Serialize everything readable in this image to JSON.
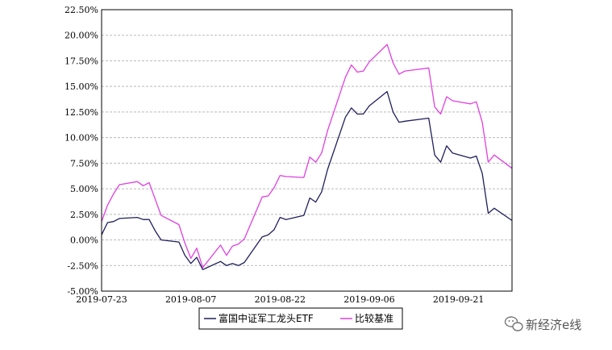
{
  "chart_data": {
    "type": "line",
    "title": "",
    "xlabel": "",
    "ylabel": "",
    "ylim": [
      -5,
      22.5
    ],
    "yticks": [
      "22.50%",
      "20.00%",
      "17.50%",
      "15.00%",
      "12.50%",
      "10.00%",
      "7.50%",
      "5.00%",
      "2.50%",
      "0.00%",
      "-2.50%",
      "-5.00%"
    ],
    "xlim": [
      "2019-07-23",
      "2019-09-30"
    ],
    "xticks": [
      "2019-07-23",
      "2019-08-07",
      "2019-08-22",
      "2019-09-06",
      "2019-09-21"
    ],
    "grid": true,
    "legend_position": "bottom-center",
    "series": [
      {
        "name": "富国中证军工龙头ETF",
        "color": "#1f1f5c",
        "points": [
          [
            "2019-07-23",
            0.5
          ],
          [
            "2019-07-24",
            1.7
          ],
          [
            "2019-07-25",
            1.8
          ],
          [
            "2019-07-26",
            2.1
          ],
          [
            "2019-07-29",
            2.2
          ],
          [
            "2019-07-30",
            2.0
          ],
          [
            "2019-07-31",
            2.0
          ],
          [
            "2019-08-01",
            0.9
          ],
          [
            "2019-08-02",
            0.0
          ],
          [
            "2019-08-05",
            -0.2
          ],
          [
            "2019-08-06",
            -1.5
          ],
          [
            "2019-08-07",
            -2.3
          ],
          [
            "2019-08-08",
            -1.7
          ],
          [
            "2019-08-09",
            -2.9
          ],
          [
            "2019-08-12",
            -2.1
          ],
          [
            "2019-08-13",
            -2.5
          ],
          [
            "2019-08-14",
            -2.3
          ],
          [
            "2019-08-15",
            -2.5
          ],
          [
            "2019-08-16",
            -2.2
          ],
          [
            "2019-08-19",
            0.3
          ],
          [
            "2019-08-20",
            0.5
          ],
          [
            "2019-08-21",
            1.0
          ],
          [
            "2019-08-22",
            2.2
          ],
          [
            "2019-08-23",
            2.0
          ],
          [
            "2019-08-26",
            2.4
          ],
          [
            "2019-08-27",
            4.1
          ],
          [
            "2019-08-28",
            3.7
          ],
          [
            "2019-08-29",
            4.7
          ],
          [
            "2019-08-30",
            6.9
          ],
          [
            "2019-09-02",
            12.0
          ],
          [
            "2019-09-03",
            12.9
          ],
          [
            "2019-09-04",
            12.3
          ],
          [
            "2019-09-05",
            12.3
          ],
          [
            "2019-09-06",
            13.1
          ],
          [
            "2019-09-09",
            14.5
          ],
          [
            "2019-09-10",
            12.5
          ],
          [
            "2019-09-11",
            11.5
          ],
          [
            "2019-09-12",
            11.6
          ],
          [
            "2019-09-16",
            11.9
          ],
          [
            "2019-09-17",
            8.3
          ],
          [
            "2019-09-18",
            7.6
          ],
          [
            "2019-09-19",
            9.2
          ],
          [
            "2019-09-20",
            8.5
          ],
          [
            "2019-09-23",
            8.0
          ],
          [
            "2019-09-24",
            8.2
          ],
          [
            "2019-09-25",
            6.5
          ],
          [
            "2019-09-26",
            2.6
          ],
          [
            "2019-09-27",
            3.1
          ],
          [
            "2019-09-30",
            1.9
          ]
        ]
      },
      {
        "name": "比较基准",
        "color": "#e040e0",
        "points": [
          [
            "2019-07-23",
            1.8
          ],
          [
            "2019-07-24",
            3.4
          ],
          [
            "2019-07-25",
            4.5
          ],
          [
            "2019-07-26",
            5.4
          ],
          [
            "2019-07-29",
            5.7
          ],
          [
            "2019-07-30",
            5.3
          ],
          [
            "2019-07-31",
            5.6
          ],
          [
            "2019-08-01",
            4.0
          ],
          [
            "2019-08-02",
            2.4
          ],
          [
            "2019-08-05",
            1.5
          ],
          [
            "2019-08-06",
            -0.3
          ],
          [
            "2019-08-07",
            -1.8
          ],
          [
            "2019-08-08",
            -0.8
          ],
          [
            "2019-08-09",
            -2.7
          ],
          [
            "2019-08-12",
            -0.5
          ],
          [
            "2019-08-13",
            -1.5
          ],
          [
            "2019-08-14",
            -0.6
          ],
          [
            "2019-08-15",
            -0.4
          ],
          [
            "2019-08-16",
            0.1
          ],
          [
            "2019-08-19",
            4.2
          ],
          [
            "2019-08-20",
            4.3
          ],
          [
            "2019-08-21",
            5.1
          ],
          [
            "2019-08-22",
            6.3
          ],
          [
            "2019-08-23",
            6.2
          ],
          [
            "2019-08-26",
            6.1
          ],
          [
            "2019-08-27",
            8.1
          ],
          [
            "2019-08-28",
            7.6
          ],
          [
            "2019-08-29",
            8.5
          ],
          [
            "2019-08-30",
            10.7
          ],
          [
            "2019-09-02",
            15.9
          ],
          [
            "2019-09-03",
            17.1
          ],
          [
            "2019-09-04",
            16.4
          ],
          [
            "2019-09-05",
            16.5
          ],
          [
            "2019-09-06",
            17.4
          ],
          [
            "2019-09-09",
            19.1
          ],
          [
            "2019-09-10",
            17.3
          ],
          [
            "2019-09-11",
            16.2
          ],
          [
            "2019-09-12",
            16.5
          ],
          [
            "2019-09-16",
            16.8
          ],
          [
            "2019-09-17",
            13.0
          ],
          [
            "2019-09-18",
            12.3
          ],
          [
            "2019-09-19",
            14.0
          ],
          [
            "2019-09-20",
            13.6
          ],
          [
            "2019-09-23",
            13.3
          ],
          [
            "2019-09-24",
            13.5
          ],
          [
            "2019-09-25",
            11.5
          ],
          [
            "2019-09-26",
            7.6
          ],
          [
            "2019-09-27",
            8.3
          ],
          [
            "2019-09-30",
            7.0
          ]
        ]
      }
    ]
  },
  "watermark": {
    "text": "新经济e线"
  }
}
